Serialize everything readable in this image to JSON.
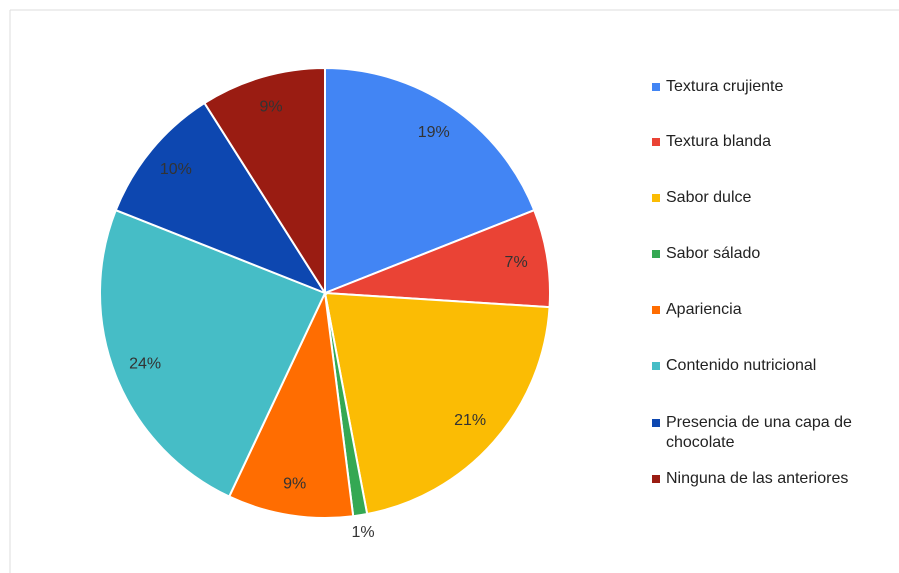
{
  "chart_data": {
    "type": "pie",
    "categories": [
      "Textura crujiente",
      "Textura blanda",
      "Sabor dulce",
      "Sabor sálado",
      "Apariencia",
      "Contenido nutricional",
      "Presencia de una capa de chocolate",
      "Ninguna de las anteriores"
    ],
    "values": [
      19,
      7,
      21,
      1,
      9,
      24,
      10,
      9
    ],
    "value_labels": [
      "19%",
      "7%",
      "21%",
      "1%",
      "9%",
      "24%",
      "10%",
      "9%"
    ],
    "colors": [
      "#4285f4",
      "#ea4335",
      "#fbbc04",
      "#34a853",
      "#ff6d01",
      "#46bdc6",
      "#0d47b0",
      "#9a1c12"
    ],
    "legend": "right"
  }
}
